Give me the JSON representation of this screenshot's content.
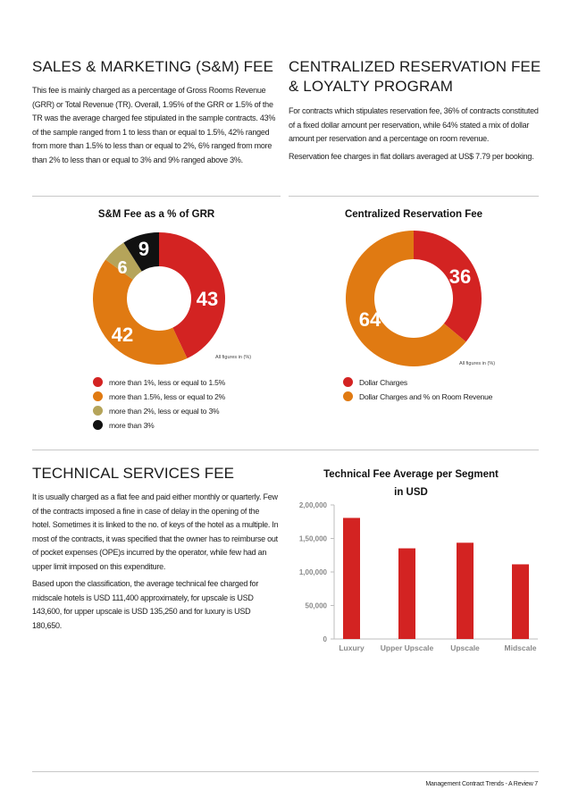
{
  "colors": {
    "red": "#d32322",
    "orange": "#e07a12",
    "khaki": "#b5a45a",
    "black": "#111111",
    "axis_text": "#8a8a8a"
  },
  "sm_section": {
    "heading": "SALES & MARKETING (S&M) FEE",
    "body": "This fee is mainly charged as a percentage of Gross Rooms Revenue (GRR) or Total Revenue (TR). Overall, 1.95% of the GRR or 1.5% of the TR was the average charged fee stipulated in the sample contracts. 43% of the sample ranged from 1 to less than or equal to 1.5%, 42% ranged from more than 1.5% to less than or equal to 2%, 6% ranged from more than 2% to less than or equal to 3% and 9% ranged above 3%."
  },
  "crs_section": {
    "heading_line1": "CENTRALIZED RESERVATION FEE",
    "heading_line2": "& LOYALTY PROGRAM",
    "body1": "For contracts which stipulates reservation fee, 36% of contracts constituted of a fixed dollar amount per reservation, while 64% stated a mix of dollar amount per reservation and a percentage on room revenue.",
    "body2": "Reservation fee charges in flat dollars averaged at US$ 7.79 per booking."
  },
  "tech_section": {
    "heading": "TECHNICAL SERVICES FEE",
    "body1": "It is usually charged as a flat fee and paid either monthly or quarterly. Few of the contracts imposed a fine in case of delay in the opening of the hotel. Sometimes it is linked to the no. of keys of the hotel as a multiple. In most of the contracts, it was specified that the owner has to reimburse out of pocket expenses (OPE)s incurred by the operator, while few had an upper limit imposed on this expenditure.",
    "body2": "Based upon the classification, the average technical fee charged for midscale hotels is USD 111,400 approximately, for upscale is USD 143,600, for upper upscale is USD 135,250 and for luxury is USD 180,650."
  },
  "figures_note": "All figures in (%)",
  "footer": "Management Contract Trends - A Review  7",
  "chart_data": [
    {
      "type": "pie",
      "title": "S&M Fee as a % of GRR",
      "labels": [
        "more than 1%, less or equal to 1.5%",
        "more than 1.5%, less or equal to 2%",
        "more than 2%, less or equal to 3%",
        "more than 3%"
      ],
      "values": [
        43,
        42,
        6,
        9
      ],
      "value_labels": [
        "43",
        "42",
        "6",
        "9"
      ],
      "colors": [
        "#d32322",
        "#e07a12",
        "#b5a45a",
        "#111111"
      ],
      "donut": true,
      "legend": "bottom-left"
    },
    {
      "type": "pie",
      "title": "Centralized Reservation Fee",
      "labels": [
        "Dollar Charges",
        "Dollar Charges and % on Room Revenue"
      ],
      "values": [
        36,
        64
      ],
      "value_labels": [
        "36",
        "64"
      ],
      "colors": [
        "#d32322",
        "#e07a12"
      ],
      "donut": true,
      "legend": "bottom-left"
    },
    {
      "type": "bar",
      "title_line1": "Technical Fee Average per Segment",
      "title_line2": "in USD",
      "categories": [
        "Luxury",
        "Upper Upscale",
        "Upscale",
        "Midscale"
      ],
      "values": [
        180650,
        135250,
        143600,
        111400
      ],
      "ylim": [
        0,
        200000
      ],
      "yticks": [
        0,
        50000,
        100000,
        150000,
        200000
      ],
      "ytick_labels": [
        "0",
        "50,000",
        "1,00,000",
        "1,50,000",
        "2,00,000"
      ],
      "grid": false,
      "color": "#d32322"
    }
  ]
}
